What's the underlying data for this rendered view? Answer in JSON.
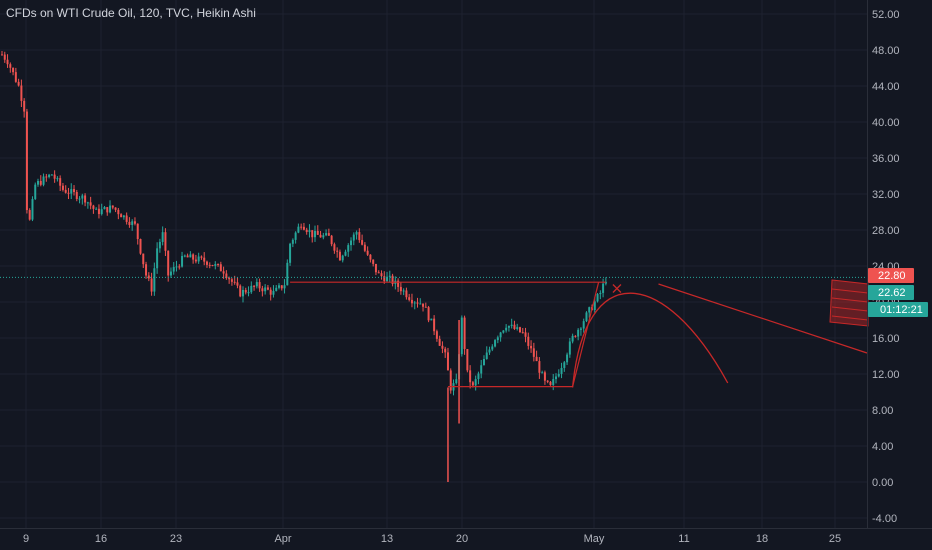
{
  "header": {
    "title": "CFDs on WTI Crude Oil, 120, TVC, Heikin Ashi"
  },
  "colors": {
    "background": "#131722",
    "grid": "#1e2230",
    "up": "#26a69a",
    "down": "#ef5350",
    "drawing": "#c62828",
    "last_line": "#26a69a",
    "axis_text": "#b2b5be"
  },
  "price_axis": {
    "labels": [
      "52.00",
      "48.00",
      "44.00",
      "40.00",
      "36.00",
      "32.00",
      "28.00",
      "24.00",
      "20.00",
      "16.00",
      "12.00",
      "8.00",
      "4.00",
      "0.00",
      "-4.00"
    ]
  },
  "time_axis": {
    "labels": [
      "9",
      "16",
      "23",
      "Apr",
      "13",
      "20",
      "May",
      "11",
      "18",
      "25"
    ]
  },
  "badges": {
    "red_price": "22.80",
    "green_price": "22.62",
    "countdown": "01:12:21"
  },
  "chart_data": {
    "type": "candlestick",
    "title": "CFDs on WTI Crude Oil, 120, TVC, Heikin Ashi",
    "ylim": [
      -4,
      52
    ],
    "x_ticks": [
      "9",
      "16",
      "23",
      "Apr",
      "13",
      "20",
      "May",
      "11",
      "18",
      "25"
    ],
    "y_ticks": [
      52,
      48,
      44,
      40,
      36,
      32,
      28,
      24,
      20,
      16,
      12,
      8,
      4,
      0,
      -4
    ],
    "last_price": 22.62,
    "path": [
      {
        "x": 0,
        "y": 47.5
      },
      {
        "x": 2,
        "y": 46.8
      },
      {
        "x": 6,
        "y": 44.0
      },
      {
        "x": 8,
        "y": 41.5
      },
      {
        "x": 9,
        "y": 30.5
      },
      {
        "x": 10,
        "y": 29.0
      },
      {
        "x": 12,
        "y": 33.0
      },
      {
        "x": 18,
        "y": 34.2
      },
      {
        "x": 22,
        "y": 32.5
      },
      {
        "x": 30,
        "y": 31.5
      },
      {
        "x": 34,
        "y": 30.0
      },
      {
        "x": 40,
        "y": 30.5
      },
      {
        "x": 48,
        "y": 28.5
      },
      {
        "x": 52,
        "y": 23.0
      },
      {
        "x": 54,
        "y": 21.5
      },
      {
        "x": 56,
        "y": 26.0
      },
      {
        "x": 58,
        "y": 27.5
      },
      {
        "x": 60,
        "y": 23.0
      },
      {
        "x": 66,
        "y": 25.0
      },
      {
        "x": 74,
        "y": 24.5
      },
      {
        "x": 80,
        "y": 23.5
      },
      {
        "x": 86,
        "y": 21.0
      },
      {
        "x": 92,
        "y": 21.8
      },
      {
        "x": 98,
        "y": 21.0
      },
      {
        "x": 102,
        "y": 22.0
      },
      {
        "x": 104,
        "y": 26.5
      },
      {
        "x": 108,
        "y": 28.8
      },
      {
        "x": 112,
        "y": 27.5
      },
      {
        "x": 118,
        "y": 27.2
      },
      {
        "x": 122,
        "y": 25.0
      },
      {
        "x": 128,
        "y": 27.8
      },
      {
        "x": 132,
        "y": 25.0
      },
      {
        "x": 136,
        "y": 23.0
      },
      {
        "x": 140,
        "y": 22.5
      },
      {
        "x": 144,
        "y": 21.5
      },
      {
        "x": 148,
        "y": 20.3
      },
      {
        "x": 152,
        "y": 19.8
      },
      {
        "x": 156,
        "y": 17.0
      },
      {
        "x": 160,
        "y": 14.0
      },
      {
        "x": 162,
        "y": 10.5
      },
      {
        "x": 164,
        "y": 11.0
      },
      {
        "x": 166,
        "y": 18.0
      },
      {
        "x": 168,
        "y": 12.0
      },
      {
        "x": 170,
        "y": 10.5
      },
      {
        "x": 174,
        "y": 13.5
      },
      {
        "x": 178,
        "y": 16.0
      },
      {
        "x": 182,
        "y": 17.5
      },
      {
        "x": 188,
        "y": 16.5
      },
      {
        "x": 192,
        "y": 14.0
      },
      {
        "x": 196,
        "y": 11.0
      },
      {
        "x": 198,
        "y": 10.5
      },
      {
        "x": 202,
        "y": 13.0
      },
      {
        "x": 206,
        "y": 16.0
      },
      {
        "x": 212,
        "y": 19.0
      },
      {
        "x": 216,
        "y": 21.0
      },
      {
        "x": 218,
        "y": 22.6
      }
    ],
    "spikes": [
      {
        "x": 161,
        "low": 0.0,
        "high": 10.5
      },
      {
        "x": 165,
        "low": 6.5,
        "high": 18.0
      }
    ],
    "drawings": {
      "resistance_line": {
        "x1": 104,
        "x2": 218,
        "y": 22.2
      },
      "support_box": {
        "x1": 161,
        "x2": 206,
        "y_top": 22.2,
        "y_bottom": 10.6
      },
      "support_line": {
        "x1": 161,
        "x2": 206,
        "y": 10.6
      },
      "x_mark": {
        "x": 222,
        "y": 21.5
      },
      "projection_arc": {
        "x1": 206,
        "x_peak": 230,
        "y_peak": 21.5,
        "x2": 262,
        "y_end": 11.0
      },
      "trend_line": {
        "x1": 237,
        "y1": 22.0,
        "x2": 300,
        "y2": 17.0
      }
    }
  }
}
